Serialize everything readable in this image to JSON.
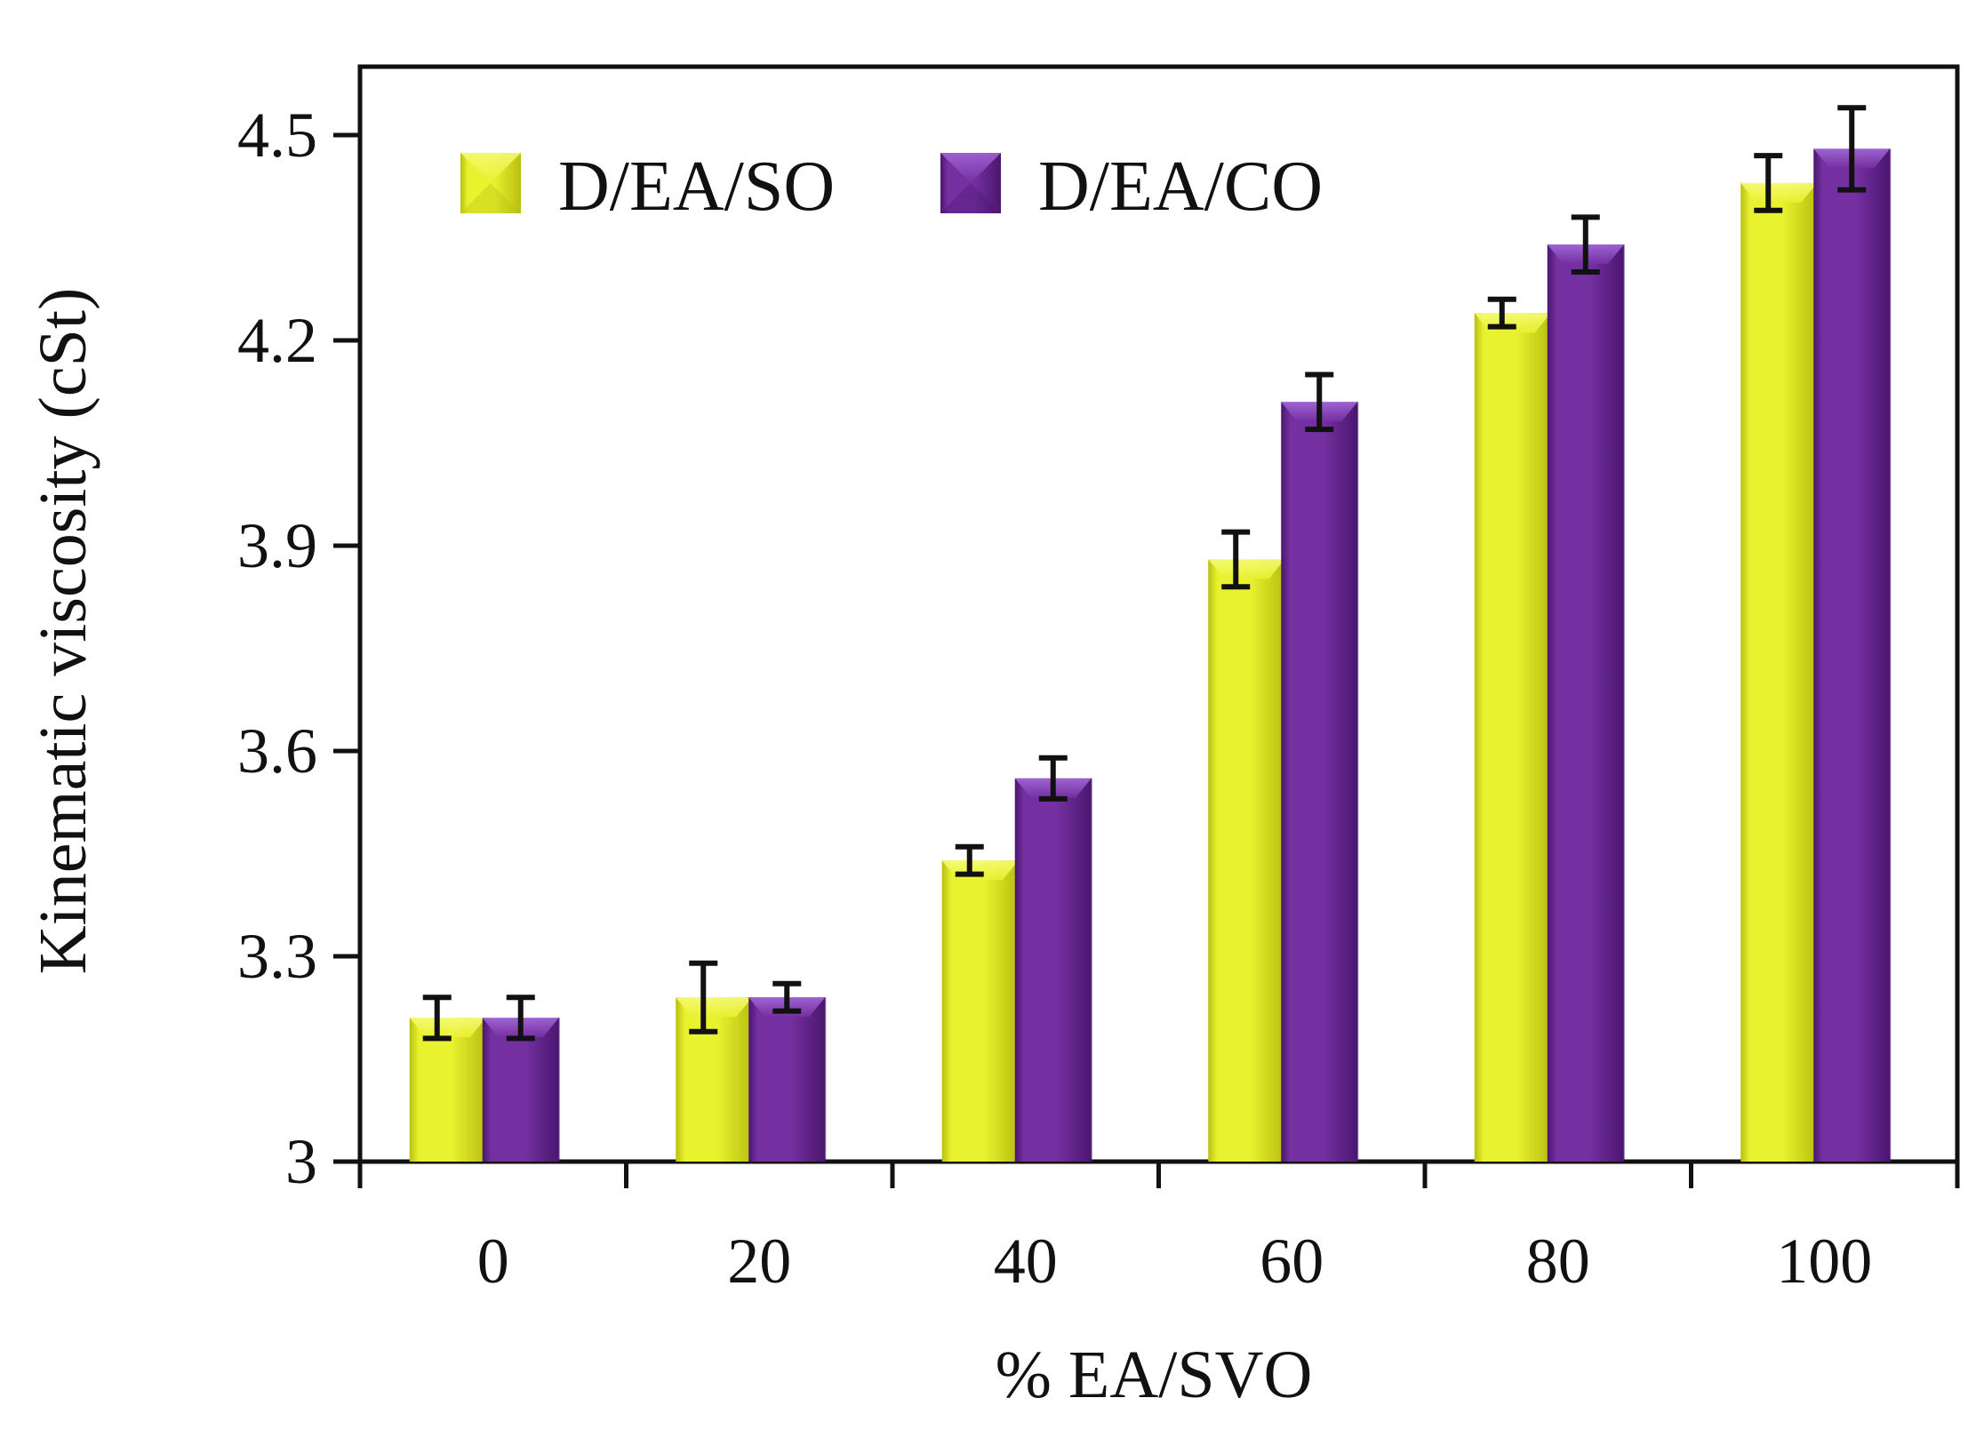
{
  "colors": {
    "so_face": "#e8f22e",
    "so_light": "#f6fb7a",
    "so_dark": "#b8bf10",
    "co_face": "#7430a0",
    "co_light": "#a46ad8",
    "co_dark": "#4a1670",
    "axis": "#111111",
    "error": "#111111"
  },
  "chart_data": {
    "type": "bar",
    "title": "",
    "xlabel": "% EA/SVO",
    "ylabel": "Kinematic viscosity (cSt)",
    "ylim": [
      3.0,
      4.6
    ],
    "yticks": [
      3,
      3.3,
      3.6,
      3.9,
      4.2,
      4.5
    ],
    "ytick_labels": [
      "3",
      "3.3",
      "3.6",
      "3.9",
      "4.2",
      "4.5"
    ],
    "categories": [
      "0",
      "20",
      "40",
      "60",
      "80",
      "100"
    ],
    "legend_position": "top-left",
    "series": [
      {
        "name": "D/EA/SO",
        "values": [
          3.21,
          3.24,
          3.44,
          3.88,
          4.24,
          4.43
        ],
        "errors": [
          0.03,
          0.05,
          0.02,
          0.04,
          0.02,
          0.04
        ]
      },
      {
        "name": "D/EA/CO",
        "values": [
          3.21,
          3.24,
          3.56,
          4.11,
          4.34,
          4.48
        ],
        "errors": [
          0.03,
          0.02,
          0.03,
          0.04,
          0.04,
          0.06
        ]
      }
    ]
  }
}
